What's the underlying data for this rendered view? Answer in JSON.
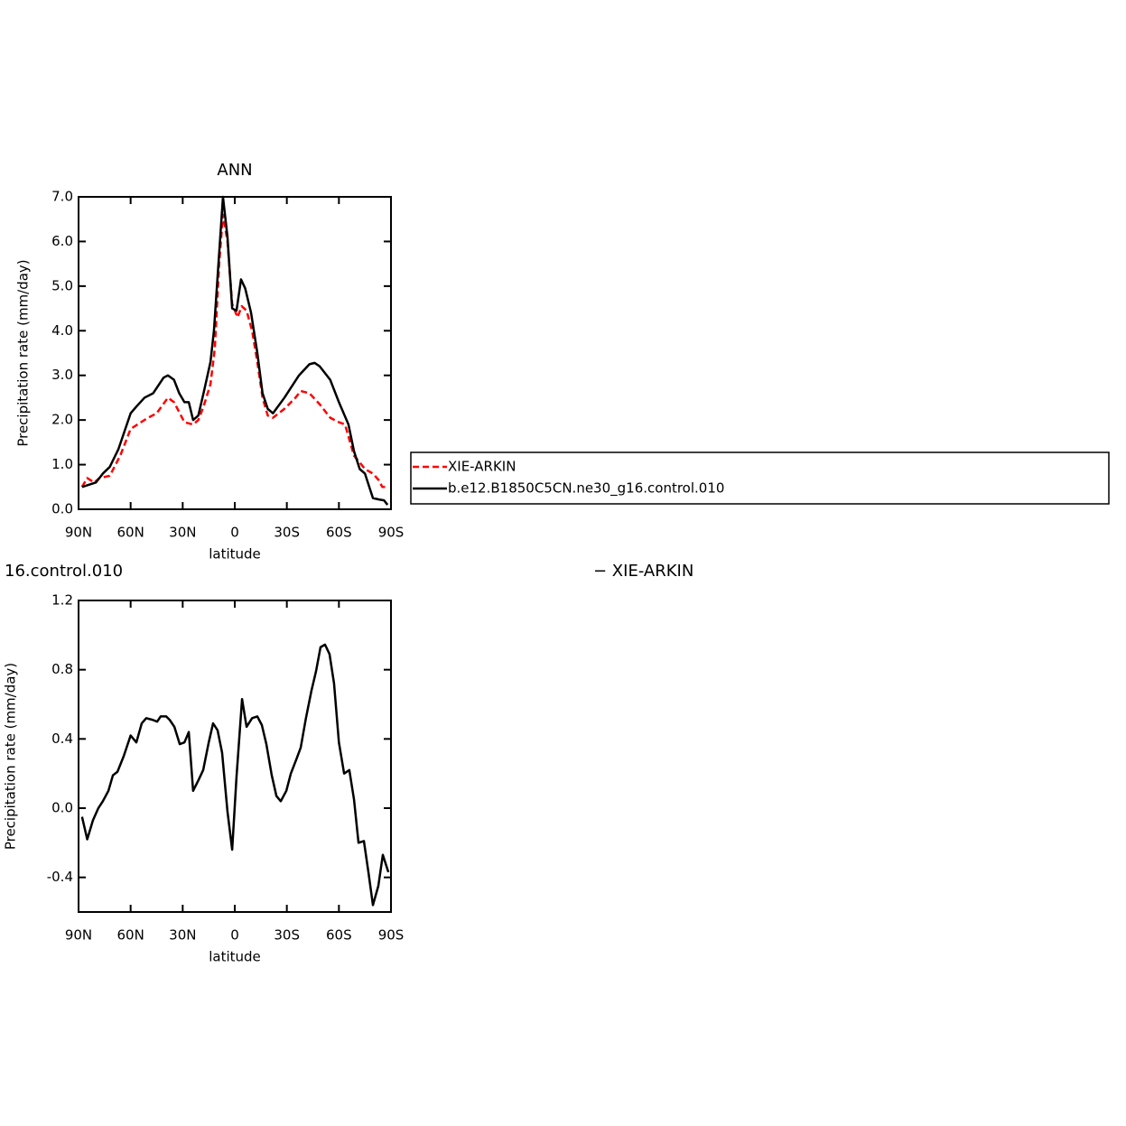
{
  "chart_data": [
    {
      "type": "line",
      "title": "ANN",
      "xlabel": "latitude",
      "ylabel": "Precipitation rate (mm/day)",
      "xlim": [
        90,
        -90
      ],
      "xticks": [
        {
          "value": 90,
          "label": "90N"
        },
        {
          "value": 60,
          "label": "60N"
        },
        {
          "value": 30,
          "label": "30N"
        },
        0,
        {
          "value": -30,
          "label": "30S"
        },
        {
          "value": -60,
          "label": "60S"
        },
        {
          "value": -90,
          "label": "90S"
        }
      ],
      "ylim": [
        0,
        7
      ],
      "yticks": [
        {
          "value": 0,
          "label": "0.0"
        },
        {
          "value": 1,
          "label": "1.0"
        },
        {
          "value": 2,
          "label": "2.0"
        },
        {
          "value": 3,
          "label": "3.0"
        },
        {
          "value": 4,
          "label": "4.0"
        },
        {
          "value": 5,
          "label": "5.0"
        },
        {
          "value": 6,
          "label": "6.0"
        },
        {
          "value": 7,
          "label": "7.0"
        }
      ],
      "legend": "right",
      "series": [
        {
          "name": "XIE-ARKIN",
          "color": "#ff0000",
          "dashed": true,
          "x": [
            88,
            85,
            81,
            78,
            72,
            66,
            60,
            54,
            50,
            45,
            38.5,
            35,
            29,
            24,
            21,
            18,
            14,
            11.5,
            9,
            6.8,
            4.2,
            1.5,
            -1.6,
            -4,
            -6.8,
            -10,
            -13,
            -16,
            -19,
            -22,
            -28.6,
            -35,
            -38,
            -43,
            -49,
            -55,
            -60,
            -63.5,
            -68.7,
            -72,
            -75,
            -79.6,
            -83,
            -85,
            -88
          ],
          "values": [
            0.5,
            0.7,
            0.6,
            0.7,
            0.75,
            1.2,
            1.8,
            1.95,
            2.05,
            2.15,
            2.5,
            2.4,
            1.95,
            1.9,
            2.0,
            2.3,
            2.8,
            3.6,
            5.5,
            6.6,
            6.0,
            4.6,
            4.3,
            4.55,
            4.45,
            4.0,
            3.3,
            2.5,
            2.1,
            2.05,
            2.25,
            2.5,
            2.65,
            2.6,
            2.35,
            2.05,
            1.95,
            1.9,
            1.2,
            1.05,
            0.9,
            0.8,
            0.65,
            0.5,
            0.5
          ]
        },
        {
          "name": "b.e12.B1850C5CN.ne30_g16.control.010",
          "color": "#000000",
          "dashed": false,
          "x": [
            88,
            80,
            76,
            72,
            67,
            60,
            56.7,
            52,
            47,
            41,
            38.5,
            35,
            32,
            29,
            26.5,
            24,
            21,
            18,
            14,
            12,
            9.4,
            6.8,
            4.2,
            1.5,
            -1,
            -3.6,
            -6,
            -9.4,
            -13,
            -16,
            -19,
            -22,
            -28.6,
            -37,
            -43,
            -46,
            -49,
            -55,
            -60,
            -65.5,
            -68.7,
            -72,
            -75,
            -79.6,
            -83,
            -86,
            -88
          ],
          "values": [
            0.5,
            0.6,
            0.8,
            0.95,
            1.35,
            2.15,
            2.3,
            2.5,
            2.6,
            2.95,
            3.0,
            2.9,
            2.6,
            2.4,
            2.4,
            2.0,
            2.1,
            2.6,
            3.3,
            4.0,
            5.5,
            7.0,
            6.1,
            4.5,
            4.45,
            5.15,
            4.95,
            4.4,
            3.5,
            2.6,
            2.25,
            2.15,
            2.5,
            3.0,
            3.25,
            3.28,
            3.2,
            2.9,
            2.4,
            1.9,
            1.3,
            0.9,
            0.8,
            0.25,
            0.22,
            0.2,
            0.1
          ]
        }
      ]
    },
    {
      "type": "line",
      "title_left": "16.control.010",
      "title_right": "− XIE-ARKIN",
      "xlabel": "latitude",
      "ylabel": "Precipitation rate (mm/day)",
      "xlim": [
        90,
        -90
      ],
      "xticks": [
        {
          "value": 90,
          "label": "90N"
        },
        {
          "value": 60,
          "label": "60N"
        },
        {
          "value": 30,
          "label": "30N"
        },
        0,
        {
          "value": -30,
          "label": "30S"
        },
        {
          "value": -60,
          "label": "60S"
        },
        {
          "value": -90,
          "label": "90S"
        }
      ],
      "ylim": [
        -0.6,
        1.2
      ],
      "yticks": [
        -0.4,
        {
          "value": 0,
          "label": "0.0"
        },
        0.4,
        0.8,
        1.2
      ],
      "series": [
        {
          "color": "#000000",
          "dashed": false,
          "x": [
            88,
            85,
            81.7,
            78.6,
            76,
            72.8,
            70.2,
            67.6,
            64,
            60,
            56.7,
            53.6,
            51,
            47.3,
            44.7,
            42.7,
            39.5,
            37.5,
            34.8,
            31.7,
            29,
            26.5,
            24,
            21,
            18.2,
            15,
            12.5,
            9.9,
            7.3,
            4.2,
            1.5,
            -1,
            -4.2,
            -6.8,
            -10,
            -13,
            -15.6,
            -18.2,
            -21.3,
            -24,
            -26.5,
            -29.7,
            -32.3,
            -35.4,
            -38,
            -41,
            -44.2,
            -46.8,
            -49.4,
            -52,
            -54.6,
            -57.2,
            -60,
            -63,
            -66,
            -68.7,
            -71.3,
            -74.4,
            -77,
            -79.6,
            -82.7,
            -85.3,
            -88.5
          ],
          "values": [
            -0.05,
            -0.18,
            -0.07,
            0.0,
            0.04,
            0.1,
            0.19,
            0.21,
            0.3,
            0.42,
            0.38,
            0.49,
            0.52,
            0.51,
            0.5,
            0.53,
            0.53,
            0.51,
            0.47,
            0.37,
            0.38,
            0.44,
            0.1,
            0.16,
            0.22,
            0.38,
            0.49,
            0.45,
            0.32,
            -0.02,
            -0.24,
            0.18,
            0.63,
            0.47,
            0.52,
            0.53,
            0.48,
            0.37,
            0.19,
            0.07,
            0.04,
            0.1,
            0.2,
            0.28,
            0.35,
            0.52,
            0.68,
            0.79,
            0.93,
            0.945,
            0.89,
            0.72,
            0.38,
            0.2,
            0.22,
            0.05,
            -0.2,
            -0.19,
            -0.37,
            -0.56,
            -0.45,
            -0.27,
            -0.37
          ]
        }
      ]
    }
  ]
}
